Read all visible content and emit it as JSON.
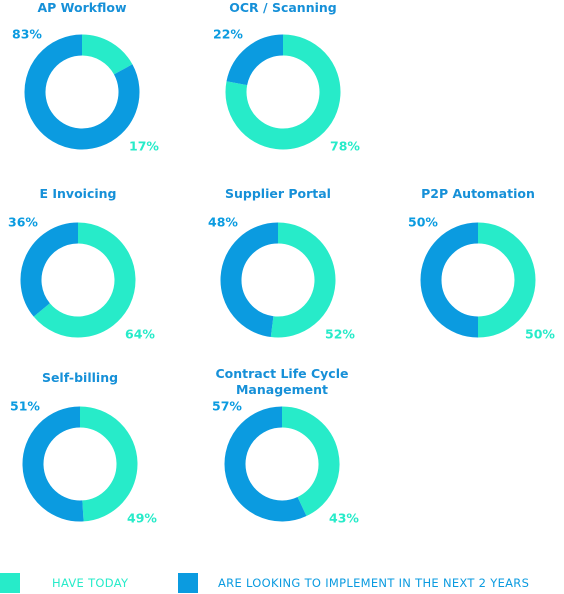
{
  "chart_data": [
    {
      "type": "donut",
      "title": "AP Workflow",
      "values": [
        17,
        83
      ],
      "value_labels": [
        "17%",
        "83%"
      ]
    },
    {
      "type": "donut",
      "title": "OCR / Scanning",
      "values": [
        78,
        22
      ],
      "value_labels": [
        "78%",
        "22%"
      ]
    },
    {
      "type": "donut",
      "title": "E Invoicing",
      "values": [
        64,
        36
      ],
      "value_labels": [
        "64%",
        "36%"
      ]
    },
    {
      "type": "donut",
      "title": "Supplier Portal",
      "values": [
        52,
        48
      ],
      "value_labels": [
        "52%",
        "48%"
      ]
    },
    {
      "type": "donut",
      "title": "P2P Automation",
      "values": [
        50,
        50
      ],
      "value_labels": [
        "50%",
        "50%"
      ]
    },
    {
      "type": "donut",
      "title": "Self-billing",
      "values": [
        49,
        51
      ],
      "value_labels": [
        "49%",
        "51%"
      ]
    },
    {
      "type": "donut",
      "title": "Contract Life Cycle Management",
      "values": [
        43,
        57
      ],
      "value_labels": [
        "43%",
        "57%"
      ]
    }
  ],
  "legend": [
    {
      "name": "HAVE TODAY",
      "color": "#27ebc9"
    },
    {
      "name": "ARE LOOKING TO IMPLEMENT IN THE NEXT 2 YEARS",
      "color": "#0b9be0"
    }
  ]
}
